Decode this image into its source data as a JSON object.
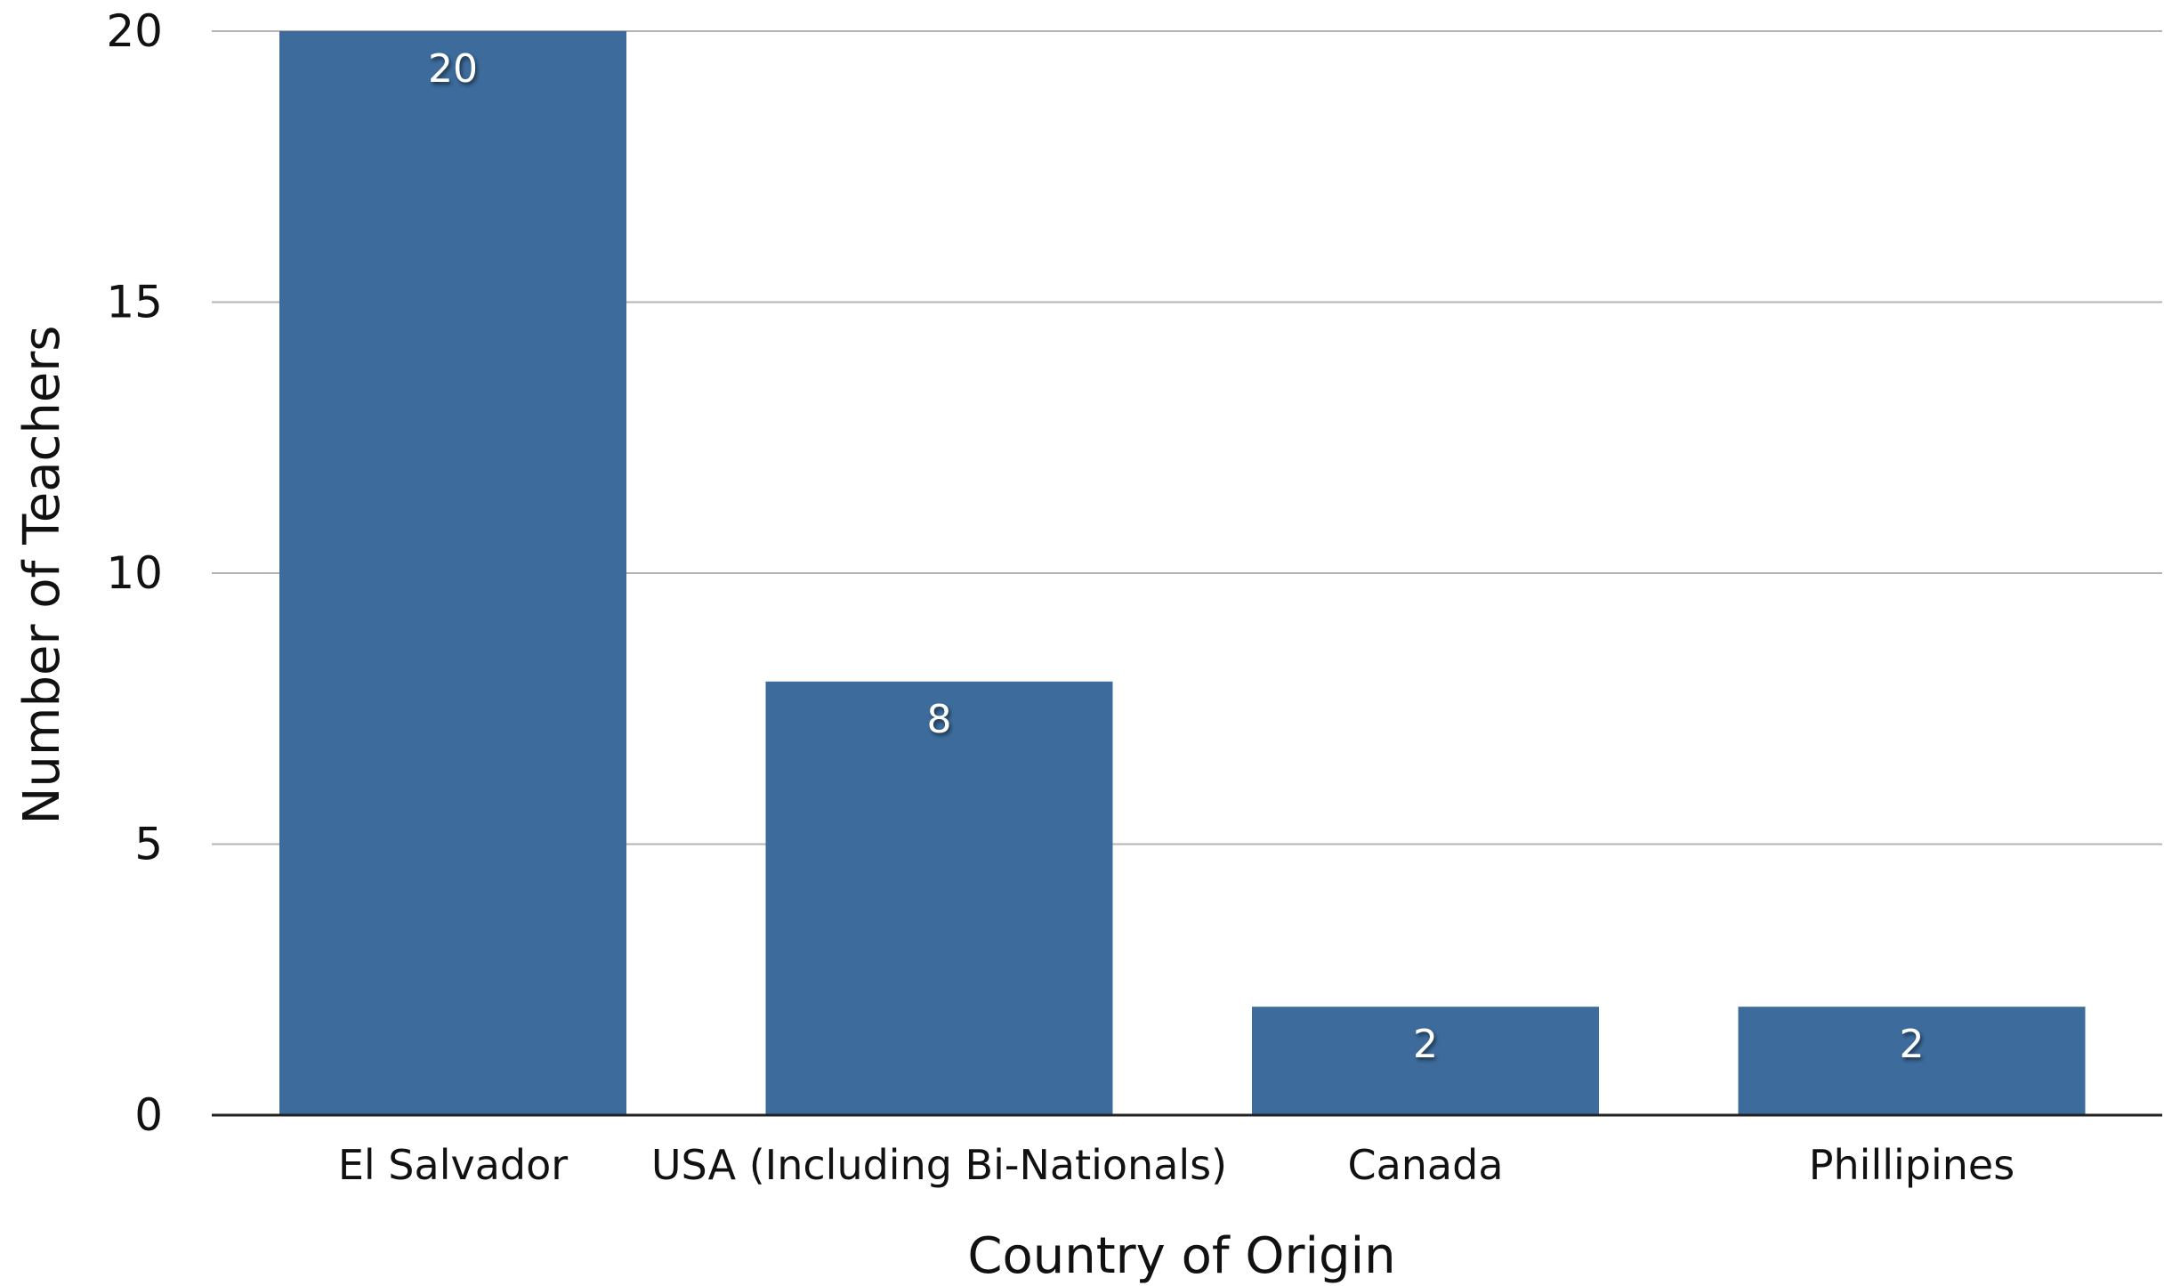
{
  "chart_data": {
    "type": "bar",
    "categories": [
      "El Salvador",
      "USA (Including Bi-Nationals)",
      "Canada",
      "Phillipines"
    ],
    "values": [
      20,
      8,
      2,
      2
    ],
    "data_labels": [
      "20",
      "8",
      "2",
      "2"
    ],
    "xlabel": "Country of Origin",
    "ylabel": "Number of Teachers",
    "ylim": [
      0,
      20
    ],
    "yticks": [
      0,
      5,
      10,
      15,
      20
    ],
    "ytick_labels": [
      "0",
      "5",
      "10",
      "15",
      "20"
    ],
    "grid": true,
    "legend": "none",
    "colors": {
      "bar": "#3d6b9b",
      "grid": "#b4b4b4",
      "axis": "#222222"
    }
  }
}
